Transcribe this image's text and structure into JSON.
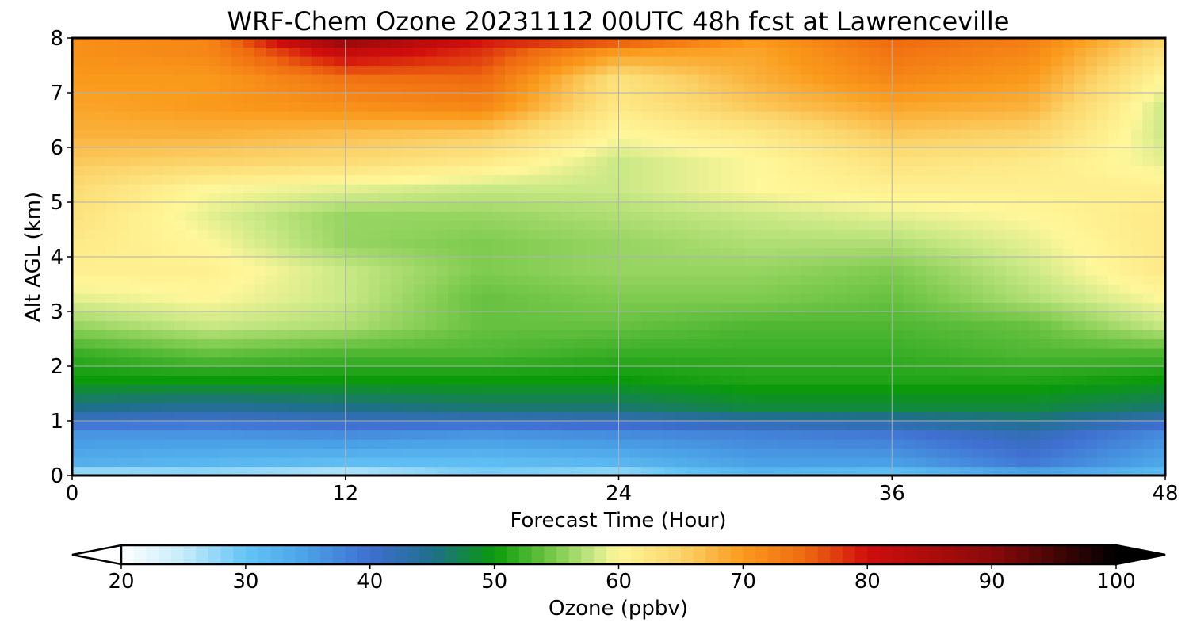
{
  "chart_data": {
    "type": "heatmap",
    "title": "WRF-Chem Ozone  20231112 00UTC 48h fcst at Lawrenceville",
    "xlabel": "Forecast Time (Hour)",
    "ylabel": "Alt AGL (km)",
    "xlim": [
      0,
      48
    ],
    "ylim": [
      0,
      8
    ],
    "x_ticks": [
      0,
      12,
      24,
      36,
      48
    ],
    "y_ticks": [
      0,
      1,
      2,
      3,
      4,
      5,
      6,
      7,
      8
    ],
    "grid": true,
    "colorbar": {
      "label": "Ozone  (ppbv)",
      "vmin": 20,
      "vmax": 100,
      "ticks": [
        20,
        30,
        40,
        50,
        60,
        70,
        80,
        90,
        100
      ],
      "extend": "both",
      "colors": {
        "20": "#ffffff",
        "25": "#c6ecfb",
        "30": "#63c4f5",
        "35": "#4aa0e6",
        "40": "#3f6fd0",
        "45": "#1f6f8a",
        "50": "#0a9a0a",
        "55": "#7ecb4f",
        "58": "#c9e886",
        "60": "#fff79a",
        "65": "#fbd46a",
        "70": "#fa9a1b",
        "75": "#ef6a10",
        "80": "#d10d0d",
        "90": "#8a0a0a",
        "100": "#000000"
      }
    },
    "x": [
      0,
      6,
      12,
      18,
      24,
      30,
      36,
      42,
      48
    ],
    "y": [
      0,
      0.25,
      0.75,
      1.25,
      1.75,
      2.25,
      2.75,
      3.25,
      3.75,
      4.25,
      4.75,
      5.25,
      5.75,
      6.25,
      6.75,
      7.25,
      7.75,
      8
    ],
    "z": [
      [
        25,
        26,
        24,
        28,
        26,
        31,
        29,
        33,
        30
      ],
      [
        33,
        32,
        31,
        31,
        32,
        35,
        35,
        39,
        34
      ],
      [
        36,
        36,
        37,
        36,
        37,
        38,
        39,
        42,
        37
      ],
      [
        45,
        44,
        45,
        46,
        46,
        48,
        48,
        48,
        46
      ],
      [
        50,
        50,
        50,
        50,
        50,
        51,
        51,
        51,
        50
      ],
      [
        52,
        54,
        53,
        53,
        52,
        52,
        52,
        53,
        53
      ],
      [
        56,
        58,
        57,
        54,
        54,
        53,
        53,
        54,
        58
      ],
      [
        59,
        60,
        58,
        54,
        55,
        55,
        54,
        57,
        60
      ],
      [
        61,
        61,
        58,
        55,
        56,
        56,
        55,
        58,
        62
      ],
      [
        62,
        60,
        56,
        55,
        56,
        57,
        57,
        59,
        62
      ],
      [
        63,
        59,
        56,
        56,
        57,
        58,
        59,
        60,
        62
      ],
      [
        64,
        60,
        59,
        58,
        58,
        60,
        61,
        61,
        61
      ],
      [
        66,
        65,
        64,
        62,
        58,
        60,
        63,
        62,
        59
      ],
      [
        68,
        68,
        67,
        66,
        60,
        62,
        66,
        65,
        58
      ],
      [
        69,
        70,
        71,
        72,
        62,
        66,
        69,
        68,
        58
      ],
      [
        70,
        70,
        74,
        75,
        63,
        68,
        72,
        70,
        60
      ],
      [
        71,
        72,
        82,
        78,
        70,
        69,
        74,
        72,
        63
      ],
      [
        71,
        72,
        90,
        80,
        78,
        70,
        75,
        73,
        65
      ]
    ]
  }
}
